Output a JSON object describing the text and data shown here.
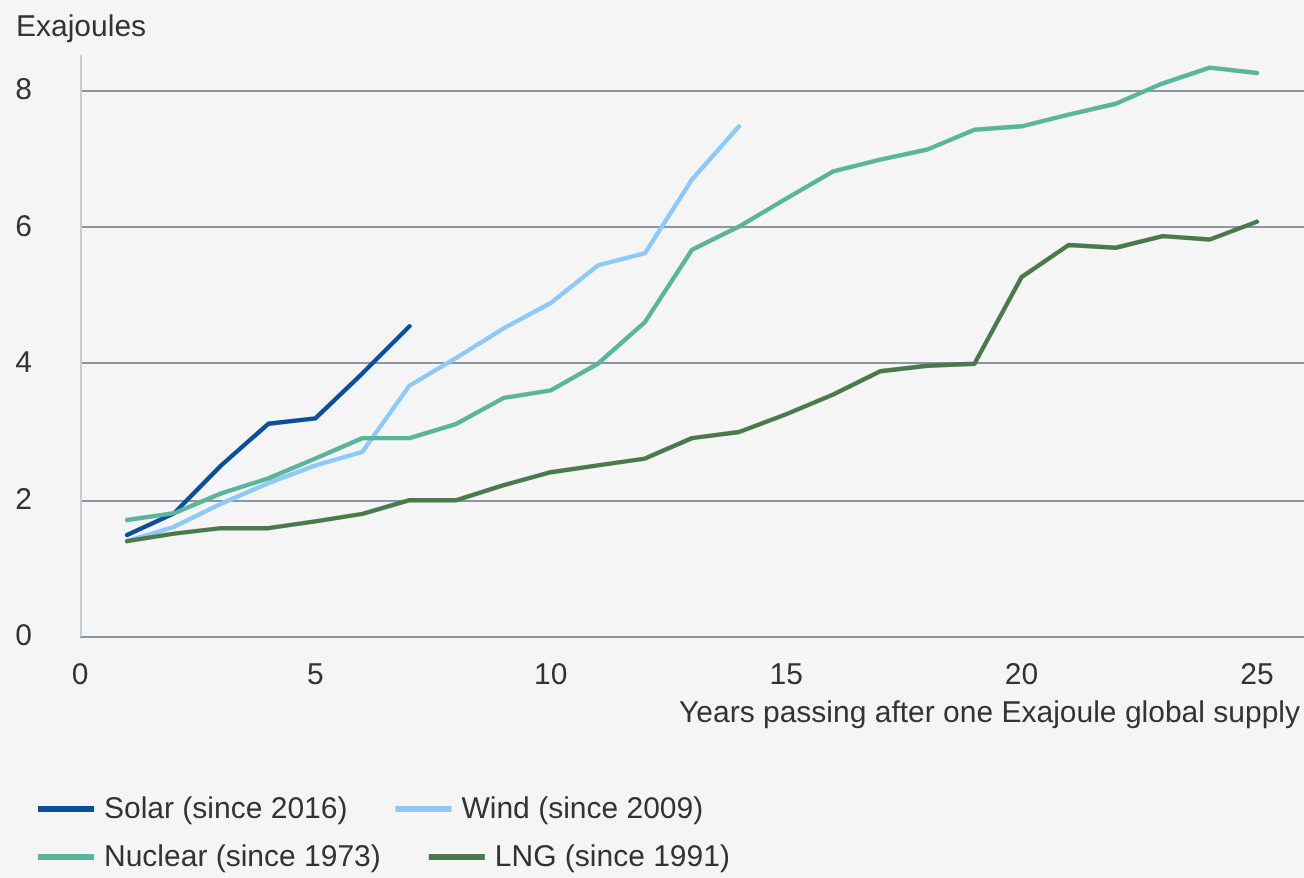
{
  "chart_data": {
    "type": "line",
    "ylabel": "Exajoules",
    "xlabel": "Years passing after one Exajoule global supply",
    "xlim": [
      0,
      26
    ],
    "xticks": [
      0,
      5,
      10,
      15,
      20,
      25
    ],
    "ylim": [
      0,
      8.5
    ],
    "yticks": [
      0,
      2,
      4,
      6,
      8
    ],
    "grid": "y",
    "legend": "bottom",
    "marker": "none",
    "line_style": "solid",
    "series": [
      {
        "name": "Solar (since 2016)",
        "color": "#0a4f98",
        "x": [
          1,
          2,
          3,
          4,
          5,
          6,
          7
        ],
        "values": [
          1.48,
          1.8,
          2.5,
          3.11,
          3.19,
          3.85,
          4.54
        ]
      },
      {
        "name": "Wind (since 2009)",
        "color": "#8ec9f8",
        "x": [
          1,
          2,
          3,
          4,
          5,
          6,
          7,
          8,
          9,
          10,
          11,
          12,
          13,
          14
        ],
        "values": [
          1.39,
          1.6,
          1.94,
          2.24,
          2.5,
          2.7,
          3.67,
          4.08,
          4.51,
          4.88,
          5.43,
          5.61,
          6.69,
          7.47
        ]
      },
      {
        "name": "Nuclear (since 1973)",
        "color": "#5ab59b",
        "x": [
          1,
          2,
          3,
          4,
          5,
          6,
          7,
          8,
          9,
          10,
          11,
          12,
          13,
          14,
          15,
          16,
          17,
          18,
          19,
          20,
          21,
          22,
          23,
          24,
          25
        ],
        "values": [
          1.7,
          1.8,
          2.09,
          2.31,
          2.6,
          2.9,
          2.9,
          3.11,
          3.49,
          3.6,
          3.99,
          4.6,
          5.66,
          6.0,
          6.41,
          6.81,
          6.98,
          7.13,
          7.42,
          7.47,
          7.64,
          7.8,
          8.1,
          8.33,
          8.25
        ]
      },
      {
        "name": "LNG (since 1991)",
        "color": "#4a7a4c",
        "x": [
          1,
          2,
          3,
          4,
          5,
          6,
          7,
          8,
          9,
          10,
          11,
          12,
          13,
          14,
          15,
          16,
          17,
          18,
          19,
          20,
          21,
          22,
          23,
          24,
          25
        ],
        "values": [
          1.39,
          1.5,
          1.58,
          1.58,
          1.68,
          1.79,
          1.99,
          1.99,
          2.21,
          2.4,
          2.5,
          2.6,
          2.9,
          2.99,
          3.25,
          3.54,
          3.88,
          3.96,
          3.99,
          5.26,
          5.73,
          5.69,
          5.86,
          5.81,
          6.07
        ]
      }
    ]
  }
}
